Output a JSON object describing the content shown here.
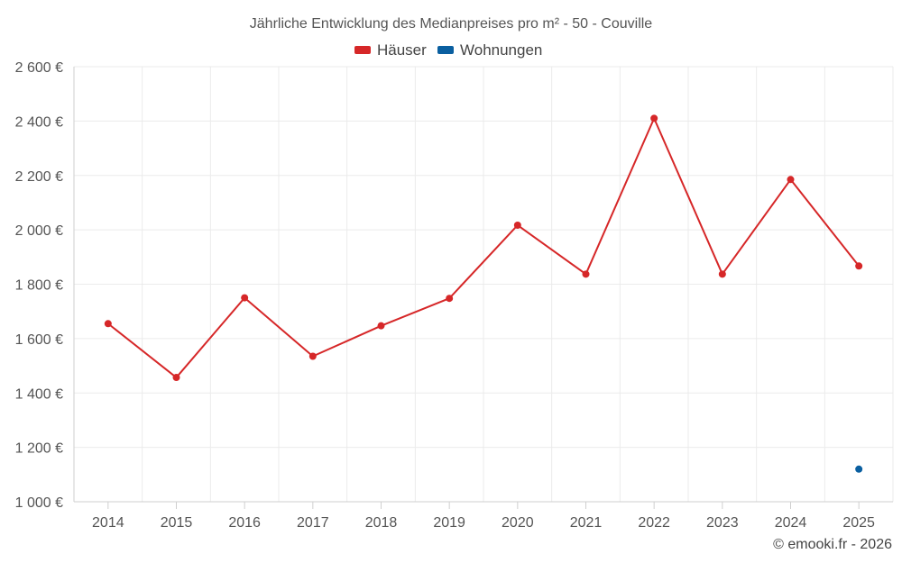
{
  "chart_data": {
    "type": "line",
    "title": "Jährliche Entwicklung des Medianpreises pro m² - 50 - Couville",
    "categories": [
      "2014",
      "2015",
      "2016",
      "2017",
      "2018",
      "2019",
      "2020",
      "2021",
      "2022",
      "2023",
      "2024",
      "2025"
    ],
    "series": [
      {
        "name": "Häuser",
        "color": "#d62728",
        "values": [
          1655,
          1457,
          1750,
          1535,
          1647,
          1748,
          2017,
          1837,
          2410,
          1837,
          2185,
          1867
        ]
      },
      {
        "name": "Wohnungen",
        "color": "#0a5fa0",
        "values": [
          null,
          null,
          null,
          null,
          null,
          null,
          null,
          null,
          null,
          null,
          null,
          1120
        ]
      }
    ],
    "ylim": [
      1000,
      2600
    ],
    "yticks": [
      1000,
      1200,
      1400,
      1600,
      1800,
      2000,
      2200,
      2400,
      2600
    ],
    "ytick_labels": [
      "1 000 €",
      "1 200 €",
      "1 400 €",
      "1 600 €",
      "1 800 €",
      "2 000 €",
      "2 200 €",
      "2 400 €",
      "2 600 €"
    ],
    "xlabel": "",
    "ylabel": "",
    "grid": true,
    "legend_position": "top-center"
  },
  "credit": "© emooki.fr - 2026"
}
